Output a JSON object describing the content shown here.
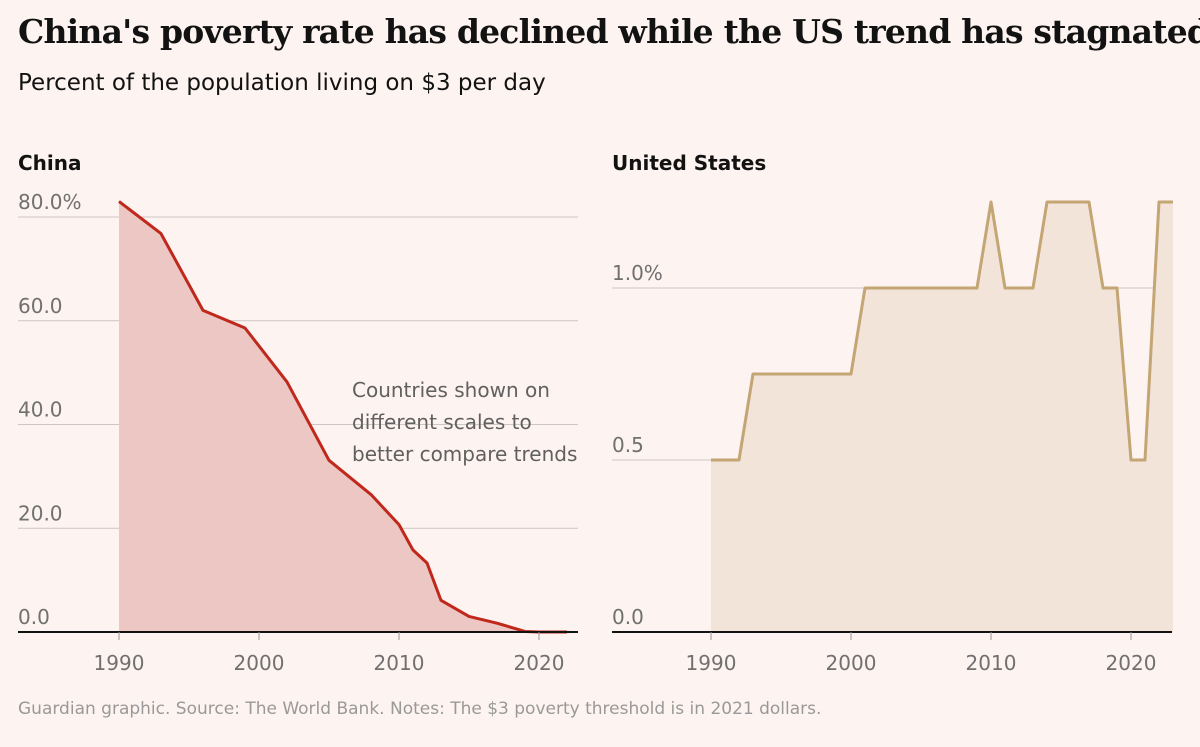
{
  "title": "China's poverty rate has declined while the US trend has stagnated",
  "subtitle": "Percent of the population living on $3 per day",
  "footer": "Guardian graphic. Source: The World Bank. Notes: The $3 poverty threshold is in 2021 dollars.",
  "chart_data": [
    {
      "type": "area",
      "title": "China",
      "x_ticks": [
        1990,
        2000,
        2010,
        2020
      ],
      "y_ticks": [
        0,
        20,
        40,
        60,
        80
      ],
      "y_tick_labels": [
        "0.0",
        "20.0",
        "40.0",
        "60.0",
        "80.0%"
      ],
      "xlim": [
        1985,
        2023
      ],
      "ylim": [
        0,
        85
      ],
      "grid": true,
      "color": "#c0281c",
      "fill": "#ecc7c3",
      "annotation": [
        "Countries shown on",
        "different scales to",
        "better compare trends"
      ],
      "x": [
        1990,
        1993,
        1996,
        1999,
        2002,
        2005,
        2008,
        2010,
        2011,
        2012,
        2013,
        2015,
        2017,
        2019,
        2020,
        2021,
        2022
      ],
      "y": [
        83.0,
        76.8,
        62.0,
        58.6,
        48.2,
        33.1,
        26.5,
        20.7,
        15.8,
        13.3,
        6.1,
        3.0,
        1.7,
        0.1,
        0,
        0,
        0
      ]
    },
    {
      "type": "area",
      "title": "United States",
      "x_ticks": [
        1990,
        2000,
        2010,
        2020
      ],
      "y_ticks": [
        0,
        0.5,
        1.0
      ],
      "y_tick_labels": [
        "0.0",
        "0.5",
        "1.0%"
      ],
      "xlim": [
        1985,
        2023
      ],
      "ylim": [
        0,
        1.3
      ],
      "grid": true,
      "color": "#c4a574",
      "fill": "#f3e4da",
      "x": [
        1990,
        1992,
        1993,
        2000,
        2001,
        2009,
        2010,
        2011,
        2013,
        2014,
        2017,
        2018,
        2019,
        2020,
        2021,
        2022,
        2023
      ],
      "y": [
        0.5,
        0.5,
        0.75,
        0.75,
        1.0,
        1.0,
        1.25,
        1.0,
        1.0,
        1.25,
        1.25,
        1.0,
        1.0,
        0.5,
        0.5,
        1.25,
        1.25
      ]
    }
  ]
}
